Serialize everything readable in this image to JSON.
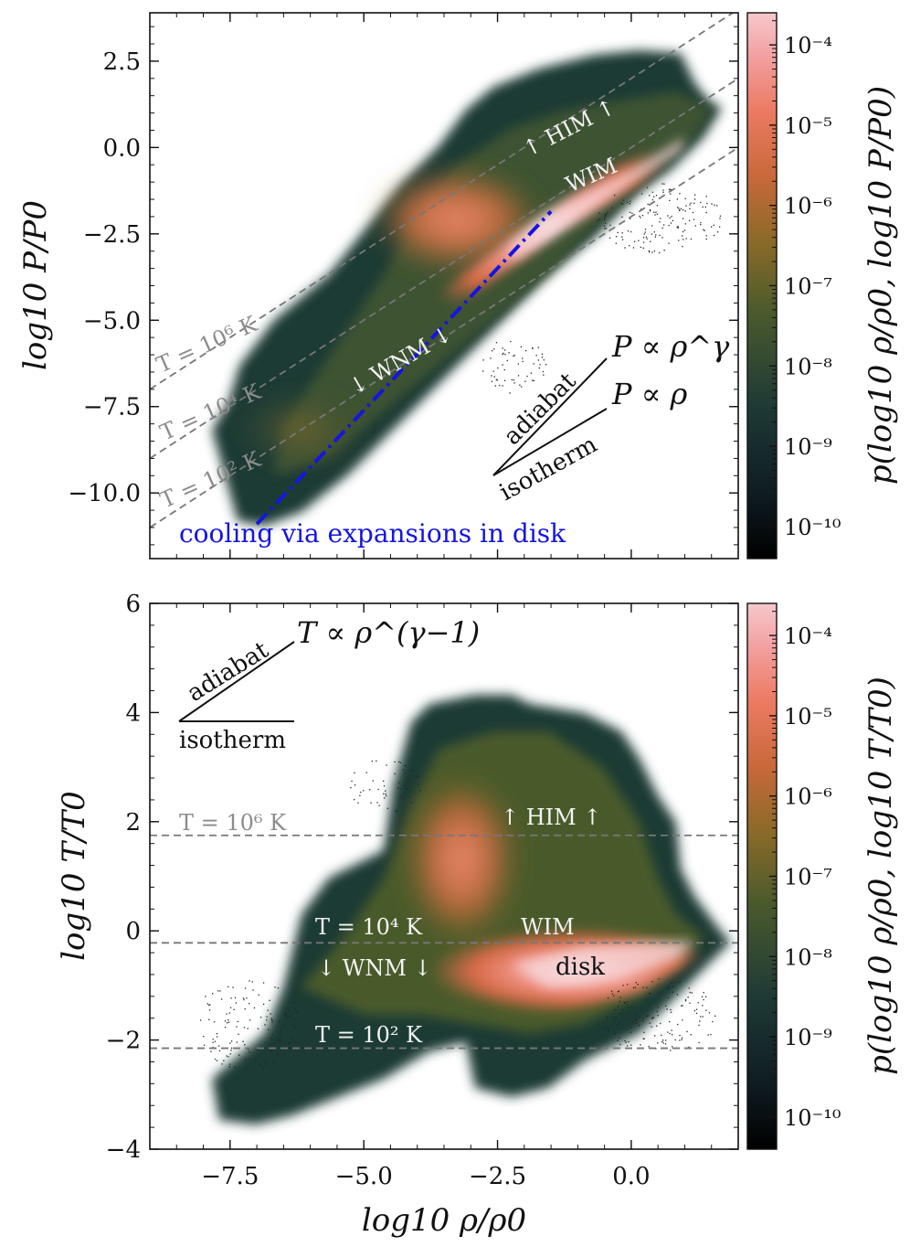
{
  "chart_data": [
    {
      "type": "heatmap",
      "panel": "top",
      "xlabel": "",
      "ylabel": "log10 P/P0",
      "xlim": [
        -9.0,
        2.0
      ],
      "ylim": [
        -11.9,
        3.9
      ],
      "yticks": [
        2.5,
        0.0,
        -2.5,
        -5.0,
        -7.5,
        -10.0
      ],
      "ytick_labels": [
        "2.5",
        "0.0",
        "−2.5",
        "−5.0",
        "−7.5",
        "−10.0"
      ],
      "isotherms": [
        {
          "label": "T = 10^6 K",
          "intercept": -7.0
        },
        {
          "label": "T = 10^4 K",
          "intercept": -9.0
        },
        {
          "label": "T = 10^2 K",
          "intercept": -11.0
        }
      ],
      "annotations": {
        "him": "↑ HIM ↑",
        "wim": "WIM",
        "wnm": "↓ WNM ↓",
        "adiabat": "adiabat",
        "isotherm": "isotherm",
        "p_rho_gamma": "P ∝ ρ^γ",
        "p_rho": "P ∝ ρ",
        "cooling": "cooling via expansions in disk",
        "iso_labels": [
          "T = 10⁶ K",
          "T = 10⁴ K",
          "T = 10² K"
        ]
      },
      "cooling_line": {
        "x": [
          -7.0,
          -1.5
        ],
        "y": [
          -10.9,
          -1.85
        ],
        "color": "#1515e0"
      },
      "colorbar": {
        "label": "p(log10 ρ/ρ0, log10 P/P0)",
        "ticks": [
          "10⁻⁴",
          "10⁻⁵",
          "10⁻⁶",
          "10⁻⁷",
          "10⁻⁸",
          "10⁻⁹",
          "10⁻¹⁰"
        ],
        "tick_exponents": [
          -4,
          -5,
          -6,
          -7,
          -8,
          -9,
          -10
        ],
        "range_exponents": [
          -10.4,
          -3.6
        ]
      }
    },
    {
      "type": "heatmap",
      "panel": "bottom",
      "xlabel": "log10 ρ/ρ0",
      "ylabel": "log10 T/T0",
      "xlim": [
        -9.0,
        2.0
      ],
      "ylim": [
        -4.0,
        6.0
      ],
      "xticks": [
        -7.5,
        -5.0,
        -2.5,
        0.0
      ],
      "xtick_labels": [
        "−7.5",
        "−5.0",
        "−2.5",
        "0.0"
      ],
      "yticks": [
        6,
        4,
        2,
        0,
        -2,
        -4
      ],
      "ytick_labels": [
        "6",
        "4",
        "2",
        "0",
        "−2",
        "−4"
      ],
      "isotherms": [
        {
          "label": "T = 10^6 K",
          "value": 1.75
        },
        {
          "label": "T = 10^4 K",
          "value": -0.22
        },
        {
          "label": "T = 10^2 K",
          "value": -2.15
        }
      ],
      "annotations": {
        "him": "↑ HIM ↑",
        "wim": "WIM",
        "wnm": "↓ WNM ↓",
        "disk": "disk",
        "adiabat": "adiabat",
        "isotherm": "isotherm",
        "t_rho": "T ∝ ρ^(γ−1)",
        "iso_labels": [
          "T = 10⁶ K",
          "T = 10⁴ K",
          "T = 10² K"
        ]
      },
      "colorbar": {
        "label": "p(log10 ρ/ρ0, log10 T/T0)",
        "ticks": [
          "10⁻⁴",
          "10⁻⁵",
          "10⁻⁶",
          "10⁻⁷",
          "10⁻⁸",
          "10⁻⁹",
          "10⁻¹⁰"
        ],
        "tick_exponents": [
          -4,
          -5,
          -6,
          -7,
          -8,
          -9,
          -10
        ],
        "range_exponents": [
          -10.4,
          -3.6
        ]
      }
    }
  ]
}
